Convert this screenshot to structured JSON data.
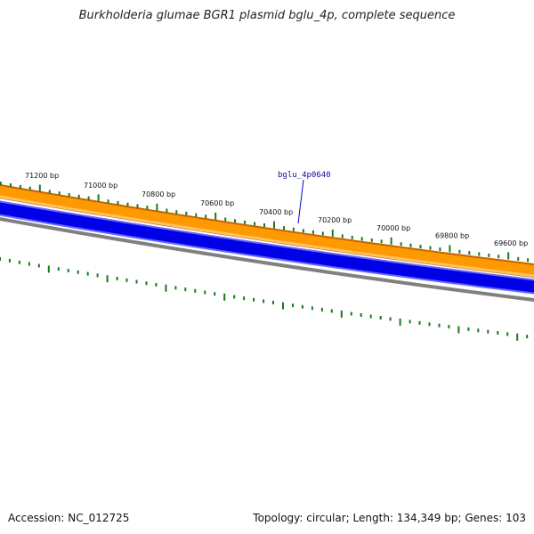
{
  "title": "Burkholderia glumae BGR1 plasmid bglu_4p, complete sequence",
  "footer": {
    "accession": "Accession: NC_012725",
    "summary": "Topology: circular; Length: 134,349 bp; Genes: 103"
  },
  "position_labels": [
    "71200 bp",
    "71000 bp",
    "70800 bp",
    "70600 bp",
    "70400 bp",
    "70200 bp",
    "70000 bp",
    "69800 bp",
    "69600 bp"
  ],
  "gene_label": "bglu_4p0640",
  "colors": {
    "orange_outline": "#c86400",
    "orange_fill": "#ff9900",
    "orange_light": "#ffc266",
    "blue_fill": "#0000e6",
    "blue_light": "#6666ff",
    "gray": "#808080",
    "tick": "#1a7a1a",
    "gene_line": "#0000cc"
  }
}
